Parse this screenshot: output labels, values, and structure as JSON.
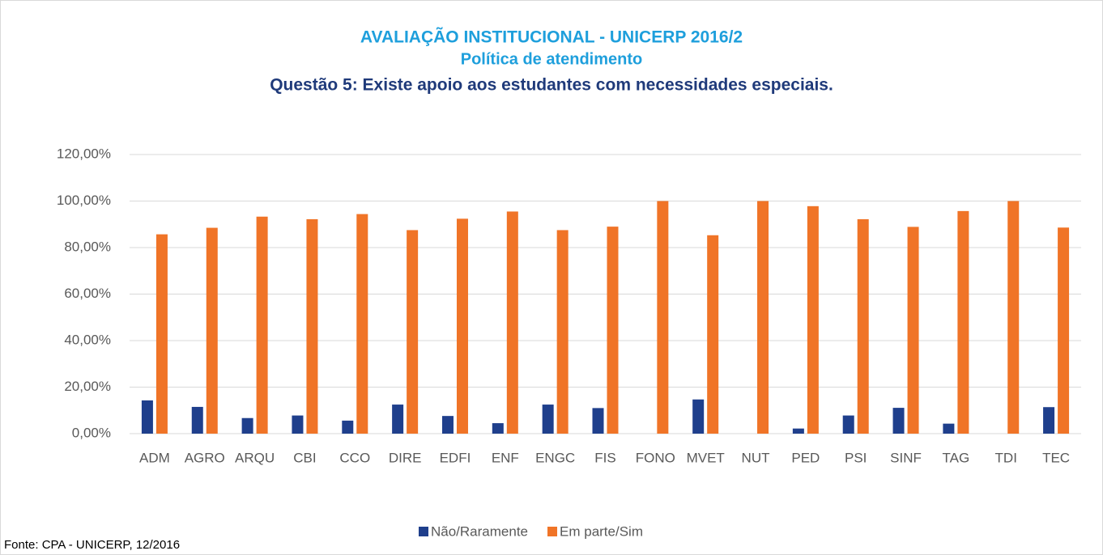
{
  "chart_data": {
    "type": "bar",
    "title": "AVALIAÇÃO INSTITUCIONAL - UNICERP 2016/2",
    "subtitle": "Política de atendimento",
    "question": "Questão 5: Existe apoio aos estudantes com necessidades especiais.",
    "source": "Fonte: CPA - UNICERP, 12/2016",
    "categories": [
      "ADM",
      "AGRO",
      "ARQU",
      "CBI",
      "CCO",
      "DIRE",
      "EDFI",
      "ENF",
      "ENGC",
      "FIS",
      "FONO",
      "MVET",
      "NUT",
      "PED",
      "PSI",
      "SINF",
      "TAG",
      "TDI",
      "TEC"
    ],
    "series": [
      {
        "name": "Não/Raramente",
        "color": "#1f3f8c",
        "values": [
          14.3,
          11.5,
          6.7,
          7.8,
          5.6,
          12.5,
          7.6,
          4.5,
          12.5,
          11,
          0,
          14.7,
          0,
          2.2,
          7.8,
          11.1,
          4.3,
          0,
          11.4
        ]
      },
      {
        "name": "Em parte/Sim",
        "color": "#f07427",
        "values": [
          85.7,
          88.5,
          93.3,
          92.2,
          94.4,
          87.5,
          92.4,
          95.5,
          87.5,
          89,
          100,
          85.3,
          100,
          97.8,
          92.2,
          88.9,
          95.7,
          100,
          88.6
        ]
      }
    ],
    "ylim": [
      0,
      120
    ],
    "yticks": [
      {
        "value": 0,
        "label": "0,00%"
      },
      {
        "value": 20,
        "label": "20,00%"
      },
      {
        "value": 40,
        "label": "40,00%"
      },
      {
        "value": 60,
        "label": "60,00%"
      },
      {
        "value": 80,
        "label": "80,00%"
      },
      {
        "value": 100,
        "label": "100,00%"
      },
      {
        "value": 120,
        "label": "120,00%"
      }
    ],
    "grid": true,
    "legend": "bottom"
  }
}
